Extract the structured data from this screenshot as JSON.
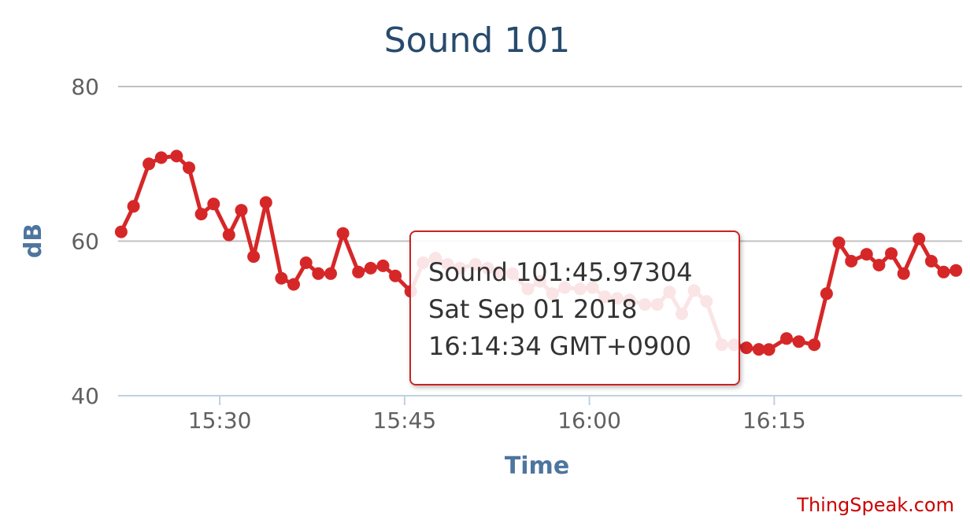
{
  "chart_data": {
    "type": "line",
    "title": "Sound 101",
    "xlabel": "Time",
    "ylabel": "dB",
    "ylim": [
      40,
      80
    ],
    "yticks": [
      40,
      60,
      80
    ],
    "xtick_labels": [
      "15:30",
      "15:45",
      "16:00",
      "16:15"
    ],
    "xlim": [
      "15:21:45",
      "16:30:15"
    ],
    "grid": true,
    "legend": "none",
    "series": [
      {
        "color": "#d62728",
        "x": [
          "15:22:00",
          "15:23:00",
          "15:24:15",
          "15:25:15",
          "15:26:30",
          "15:27:30",
          "15:28:30",
          "15:29:30",
          "15:30:45",
          "15:31:45",
          "15:32:45",
          "15:33:45",
          "15:35:00",
          "15:36:00",
          "15:37:00",
          "15:38:00",
          "15:39:00",
          "15:40:00",
          "15:41:15",
          "15:42:15",
          "15:43:15",
          "15:44:15",
          "15:45:30",
          "15:46:30",
          "15:47:30",
          "15:48:30",
          "15:49:30",
          "15:50:45",
          "15:51:45",
          "15:52:45",
          "15:53:45",
          "15:55:00",
          "15:56:00",
          "15:57:00",
          "15:58:00",
          "15:59:15",
          "16:00:15",
          "16:01:15",
          "16:02:15",
          "16:03:15",
          "16:04:30",
          "16:05:30",
          "16:06:30",
          "16:07:30",
          "16:08:30",
          "16:09:30",
          "16:10:45",
          "16:11:45",
          "16:12:45",
          "16:13:45",
          "16:14:34",
          "16:16:00",
          "16:17:00",
          "16:18:15",
          "16:19:15",
          "16:20:15",
          "16:21:15",
          "16:22:30",
          "16:23:30",
          "16:24:30",
          "16:25:30",
          "16:26:45",
          "16:27:45",
          "16:28:45",
          "16:29:45"
        ],
        "y": [
          61.2,
          64.5,
          70.0,
          70.8,
          71.0,
          69.5,
          63.5,
          64.8,
          60.8,
          64.0,
          58.0,
          65.0,
          55.2,
          54.4,
          57.2,
          55.8,
          55.8,
          61.0,
          56.0,
          56.5,
          56.8,
          55.5,
          53.5,
          57.2,
          57.8,
          57.0,
          56.5,
          57.0,
          56.5,
          56.0,
          55.8,
          53.8,
          54.8,
          53.2,
          54.0,
          53.8,
          54.0,
          52.8,
          52.6,
          52.4,
          51.8,
          51.8,
          53.4,
          50.6,
          53.6,
          52.2,
          46.6,
          46.6,
          46.2,
          46.0,
          45.97304,
          47.4,
          47.0,
          46.6,
          53.2,
          59.8,
          57.4,
          58.3,
          56.9,
          58.4,
          55.8,
          60.3,
          57.4,
          56.0,
          56.2
        ]
      }
    ],
    "tooltip": {
      "line1": "Sound 101:45.97304",
      "line2": "Sat Sep 01 2018",
      "line3": "16:14:34 GMT+0900"
    }
  },
  "credit": "ThingSpeak.com"
}
